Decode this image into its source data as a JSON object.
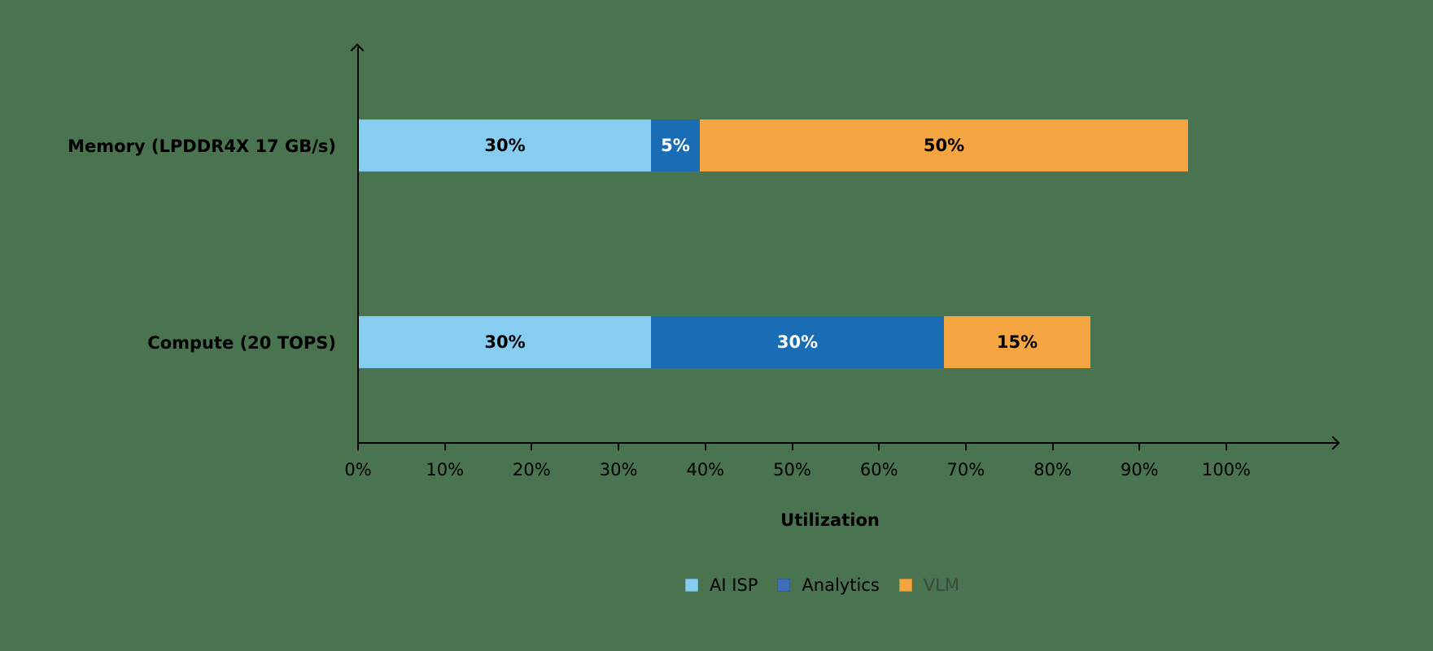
{
  "chart_data": {
    "type": "bar",
    "orientation": "horizontal",
    "stacked": true,
    "title": "",
    "xlabel": "Utilization",
    "ylabel": "",
    "xlim": [
      0,
      100
    ],
    "x_ticks": [
      "0%",
      "10%",
      "20%",
      "30%",
      "40%",
      "50%",
      "60%",
      "70%",
      "80%",
      "90%",
      "100%"
    ],
    "categories": [
      "Memory (LPDDR4X 17 GB/s)",
      "Compute (20 TOPS)"
    ],
    "series": [
      {
        "name": "AI ISP",
        "color": "#87cdf2",
        "values": [
          30,
          30
        ],
        "labels": [
          "30%",
          "30%"
        ],
        "label_color": "#000000"
      },
      {
        "name": "Analytics",
        "color": "#186db5",
        "values": [
          5,
          30
        ],
        "labels": [
          "5%",
          "30%"
        ],
        "label_color": "#ffffff"
      },
      {
        "name": "VLM",
        "color": "#f4a542",
        "values": [
          50,
          15
        ],
        "labels": [
          "50%",
          "15%"
        ],
        "label_color": "#000000"
      }
    ],
    "legend_position": "bottom",
    "grid": false
  },
  "axis": {
    "x_title": "Utilization"
  },
  "legend": {
    "items": [
      {
        "label": "AI ISP",
        "color": "#87cdf2"
      },
      {
        "label": "Analytics",
        "color": "#3e6eb5"
      },
      {
        "label": "VLM",
        "color": "#f4a542"
      }
    ]
  }
}
